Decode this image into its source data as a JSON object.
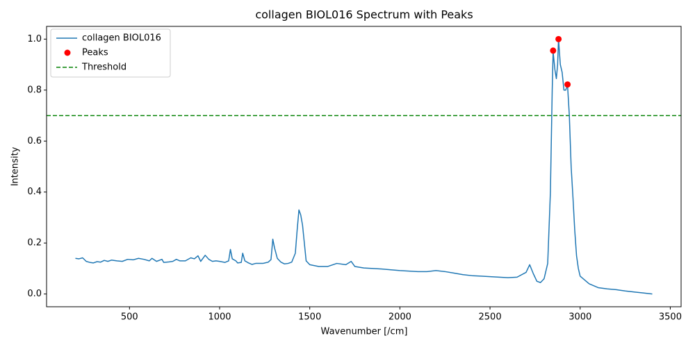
{
  "chart_data": {
    "type": "line",
    "title": "collagen BIOL016 Spectrum with Peaks",
    "x_label": "Wavenumber [/cm]",
    "y_label": "Intensity",
    "xlim": [
      40,
      3560
    ],
    "ylim": [
      -0.05,
      1.05
    ],
    "xticks": [
      500,
      1000,
      1500,
      2000,
      2500,
      3000,
      3500
    ],
    "yticks": [
      {
        "value": 0,
        "label": "0.0"
      },
      0.2,
      0.4,
      0.6,
      0.8,
      {
        "value": 1,
        "label": "1.0"
      }
    ],
    "grid": false,
    "legend": "upper left",
    "series": [
      {
        "name": "collagen BIOL016",
        "type": "line",
        "color": "#1f77b4",
        "x": [
          200,
          220,
          240,
          260,
          280,
          300,
          320,
          340,
          360,
          380,
          400,
          430,
          460,
          490,
          520,
          550,
          580,
          610,
          625,
          650,
          680,
          690,
          720,
          740,
          760,
          780,
          810,
          840,
          860,
          880,
          895,
          920,
          940,
          960,
          980,
          1000,
          1030,
          1050,
          1060,
          1070,
          1090,
          1100,
          1120,
          1128,
          1140,
          1160,
          1180,
          1200,
          1240,
          1270,
          1285,
          1295,
          1305,
          1320,
          1340,
          1360,
          1380,
          1400,
          1420,
          1430,
          1440,
          1450,
          1460,
          1470,
          1480,
          1500,
          1550,
          1600,
          1650,
          1700,
          1730,
          1750,
          1800,
          1850,
          1900,
          1950,
          2000,
          2050,
          2100,
          2150,
          2200,
          2250,
          2300,
          2350,
          2400,
          2450,
          2500,
          2550,
          2600,
          2650,
          2700,
          2720,
          2740,
          2760,
          2780,
          2800,
          2820,
          2835,
          2845,
          2850,
          2860,
          2868,
          2875,
          2880,
          2890,
          2900,
          2910,
          2920,
          2930,
          2940,
          2950,
          2960,
          2970,
          2980,
          2990,
          3000,
          3050,
          3100,
          3150,
          3200,
          3250,
          3300,
          3350,
          3400
        ],
        "values": [
          0.14,
          0.138,
          0.142,
          0.128,
          0.124,
          0.122,
          0.127,
          0.125,
          0.132,
          0.128,
          0.133,
          0.13,
          0.128,
          0.136,
          0.134,
          0.14,
          0.136,
          0.13,
          0.14,
          0.128,
          0.136,
          0.124,
          0.126,
          0.128,
          0.136,
          0.13,
          0.13,
          0.142,
          0.138,
          0.15,
          0.128,
          0.152,
          0.136,
          0.128,
          0.13,
          0.128,
          0.124,
          0.13,
          0.175,
          0.138,
          0.13,
          0.122,
          0.124,
          0.16,
          0.13,
          0.122,
          0.116,
          0.12,
          0.12,
          0.125,
          0.135,
          0.215,
          0.18,
          0.14,
          0.125,
          0.118,
          0.12,
          0.125,
          0.16,
          0.25,
          0.33,
          0.31,
          0.27,
          0.2,
          0.13,
          0.115,
          0.108,
          0.108,
          0.12,
          0.115,
          0.128,
          0.108,
          0.102,
          0.1,
          0.098,
          0.095,
          0.092,
          0.09,
          0.088,
          0.088,
          0.092,
          0.088,
          0.082,
          0.076,
          0.072,
          0.07,
          0.068,
          0.066,
          0.064,
          0.066,
          0.085,
          0.115,
          0.08,
          0.05,
          0.045,
          0.06,
          0.12,
          0.4,
          0.8,
          0.95,
          0.88,
          0.845,
          0.9,
          1.0,
          0.9,
          0.87,
          0.8,
          0.8,
          0.82,
          0.7,
          0.5,
          0.38,
          0.25,
          0.15,
          0.1,
          0.07,
          0.04,
          0.025,
          0.02,
          0.017,
          0.012,
          0.008,
          0.004,
          0
        ]
      },
      {
        "name": "Peaks",
        "type": "scatter",
        "color": "#ff0000",
        "x": [
          2850,
          2880,
          2930
        ],
        "values": [
          0.955,
          1.0,
          0.822
        ]
      }
    ],
    "threshold": {
      "name": "Threshold",
      "value": 0.7,
      "color": "#008000"
    }
  }
}
